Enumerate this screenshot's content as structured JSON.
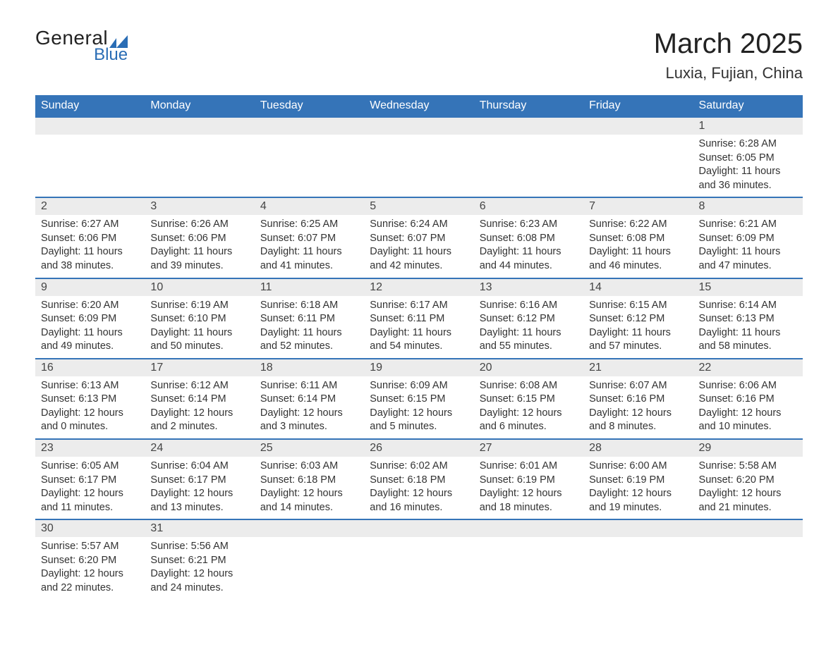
{
  "brand": {
    "line1": "General",
    "line2": "Blue",
    "shape_color": "#2a6db5"
  },
  "header": {
    "month_title": "March 2025",
    "location": "Luxia, Fujian, China"
  },
  "colors": {
    "header_bg": "#3574b8",
    "header_fg": "#ffffff",
    "daynum_bg": "#ececec",
    "row_border": "#3574b8",
    "page_bg": "#ffffff",
    "text": "#333333"
  },
  "typography": {
    "title_fontsize": 40,
    "location_fontsize": 22,
    "weekday_fontsize": 16,
    "body_fontsize": 14.5
  },
  "calendar": {
    "type": "table",
    "weekdays": [
      "Sunday",
      "Monday",
      "Tuesday",
      "Wednesday",
      "Thursday",
      "Friday",
      "Saturday"
    ],
    "weeks": [
      [
        {
          "blank": true
        },
        {
          "blank": true
        },
        {
          "blank": true
        },
        {
          "blank": true
        },
        {
          "blank": true
        },
        {
          "blank": true
        },
        {
          "day": "1",
          "sunrise": "Sunrise: 6:28 AM",
          "sunset": "Sunset: 6:05 PM",
          "daylight1": "Daylight: 11 hours",
          "daylight2": "and 36 minutes."
        }
      ],
      [
        {
          "day": "2",
          "sunrise": "Sunrise: 6:27 AM",
          "sunset": "Sunset: 6:06 PM",
          "daylight1": "Daylight: 11 hours",
          "daylight2": "and 38 minutes."
        },
        {
          "day": "3",
          "sunrise": "Sunrise: 6:26 AM",
          "sunset": "Sunset: 6:06 PM",
          "daylight1": "Daylight: 11 hours",
          "daylight2": "and 39 minutes."
        },
        {
          "day": "4",
          "sunrise": "Sunrise: 6:25 AM",
          "sunset": "Sunset: 6:07 PM",
          "daylight1": "Daylight: 11 hours",
          "daylight2": "and 41 minutes."
        },
        {
          "day": "5",
          "sunrise": "Sunrise: 6:24 AM",
          "sunset": "Sunset: 6:07 PM",
          "daylight1": "Daylight: 11 hours",
          "daylight2": "and 42 minutes."
        },
        {
          "day": "6",
          "sunrise": "Sunrise: 6:23 AM",
          "sunset": "Sunset: 6:08 PM",
          "daylight1": "Daylight: 11 hours",
          "daylight2": "and 44 minutes."
        },
        {
          "day": "7",
          "sunrise": "Sunrise: 6:22 AM",
          "sunset": "Sunset: 6:08 PM",
          "daylight1": "Daylight: 11 hours",
          "daylight2": "and 46 minutes."
        },
        {
          "day": "8",
          "sunrise": "Sunrise: 6:21 AM",
          "sunset": "Sunset: 6:09 PM",
          "daylight1": "Daylight: 11 hours",
          "daylight2": "and 47 minutes."
        }
      ],
      [
        {
          "day": "9",
          "sunrise": "Sunrise: 6:20 AM",
          "sunset": "Sunset: 6:09 PM",
          "daylight1": "Daylight: 11 hours",
          "daylight2": "and 49 minutes."
        },
        {
          "day": "10",
          "sunrise": "Sunrise: 6:19 AM",
          "sunset": "Sunset: 6:10 PM",
          "daylight1": "Daylight: 11 hours",
          "daylight2": "and 50 minutes."
        },
        {
          "day": "11",
          "sunrise": "Sunrise: 6:18 AM",
          "sunset": "Sunset: 6:11 PM",
          "daylight1": "Daylight: 11 hours",
          "daylight2": "and 52 minutes."
        },
        {
          "day": "12",
          "sunrise": "Sunrise: 6:17 AM",
          "sunset": "Sunset: 6:11 PM",
          "daylight1": "Daylight: 11 hours",
          "daylight2": "and 54 minutes."
        },
        {
          "day": "13",
          "sunrise": "Sunrise: 6:16 AM",
          "sunset": "Sunset: 6:12 PM",
          "daylight1": "Daylight: 11 hours",
          "daylight2": "and 55 minutes."
        },
        {
          "day": "14",
          "sunrise": "Sunrise: 6:15 AM",
          "sunset": "Sunset: 6:12 PM",
          "daylight1": "Daylight: 11 hours",
          "daylight2": "and 57 minutes."
        },
        {
          "day": "15",
          "sunrise": "Sunrise: 6:14 AM",
          "sunset": "Sunset: 6:13 PM",
          "daylight1": "Daylight: 11 hours",
          "daylight2": "and 58 minutes."
        }
      ],
      [
        {
          "day": "16",
          "sunrise": "Sunrise: 6:13 AM",
          "sunset": "Sunset: 6:13 PM",
          "daylight1": "Daylight: 12 hours",
          "daylight2": "and 0 minutes."
        },
        {
          "day": "17",
          "sunrise": "Sunrise: 6:12 AM",
          "sunset": "Sunset: 6:14 PM",
          "daylight1": "Daylight: 12 hours",
          "daylight2": "and 2 minutes."
        },
        {
          "day": "18",
          "sunrise": "Sunrise: 6:11 AM",
          "sunset": "Sunset: 6:14 PM",
          "daylight1": "Daylight: 12 hours",
          "daylight2": "and 3 minutes."
        },
        {
          "day": "19",
          "sunrise": "Sunrise: 6:09 AM",
          "sunset": "Sunset: 6:15 PM",
          "daylight1": "Daylight: 12 hours",
          "daylight2": "and 5 minutes."
        },
        {
          "day": "20",
          "sunrise": "Sunrise: 6:08 AM",
          "sunset": "Sunset: 6:15 PM",
          "daylight1": "Daylight: 12 hours",
          "daylight2": "and 6 minutes."
        },
        {
          "day": "21",
          "sunrise": "Sunrise: 6:07 AM",
          "sunset": "Sunset: 6:16 PM",
          "daylight1": "Daylight: 12 hours",
          "daylight2": "and 8 minutes."
        },
        {
          "day": "22",
          "sunrise": "Sunrise: 6:06 AM",
          "sunset": "Sunset: 6:16 PM",
          "daylight1": "Daylight: 12 hours",
          "daylight2": "and 10 minutes."
        }
      ],
      [
        {
          "day": "23",
          "sunrise": "Sunrise: 6:05 AM",
          "sunset": "Sunset: 6:17 PM",
          "daylight1": "Daylight: 12 hours",
          "daylight2": "and 11 minutes."
        },
        {
          "day": "24",
          "sunrise": "Sunrise: 6:04 AM",
          "sunset": "Sunset: 6:17 PM",
          "daylight1": "Daylight: 12 hours",
          "daylight2": "and 13 minutes."
        },
        {
          "day": "25",
          "sunrise": "Sunrise: 6:03 AM",
          "sunset": "Sunset: 6:18 PM",
          "daylight1": "Daylight: 12 hours",
          "daylight2": "and 14 minutes."
        },
        {
          "day": "26",
          "sunrise": "Sunrise: 6:02 AM",
          "sunset": "Sunset: 6:18 PM",
          "daylight1": "Daylight: 12 hours",
          "daylight2": "and 16 minutes."
        },
        {
          "day": "27",
          "sunrise": "Sunrise: 6:01 AM",
          "sunset": "Sunset: 6:19 PM",
          "daylight1": "Daylight: 12 hours",
          "daylight2": "and 18 minutes."
        },
        {
          "day": "28",
          "sunrise": "Sunrise: 6:00 AM",
          "sunset": "Sunset: 6:19 PM",
          "daylight1": "Daylight: 12 hours",
          "daylight2": "and 19 minutes."
        },
        {
          "day": "29",
          "sunrise": "Sunrise: 5:58 AM",
          "sunset": "Sunset: 6:20 PM",
          "daylight1": "Daylight: 12 hours",
          "daylight2": "and 21 minutes."
        }
      ],
      [
        {
          "day": "30",
          "sunrise": "Sunrise: 5:57 AM",
          "sunset": "Sunset: 6:20 PM",
          "daylight1": "Daylight: 12 hours",
          "daylight2": "and 22 minutes."
        },
        {
          "day": "31",
          "sunrise": "Sunrise: 5:56 AM",
          "sunset": "Sunset: 6:21 PM",
          "daylight1": "Daylight: 12 hours",
          "daylight2": "and 24 minutes."
        },
        {
          "blank": true
        },
        {
          "blank": true
        },
        {
          "blank": true
        },
        {
          "blank": true
        },
        {
          "blank": true
        }
      ]
    ]
  }
}
